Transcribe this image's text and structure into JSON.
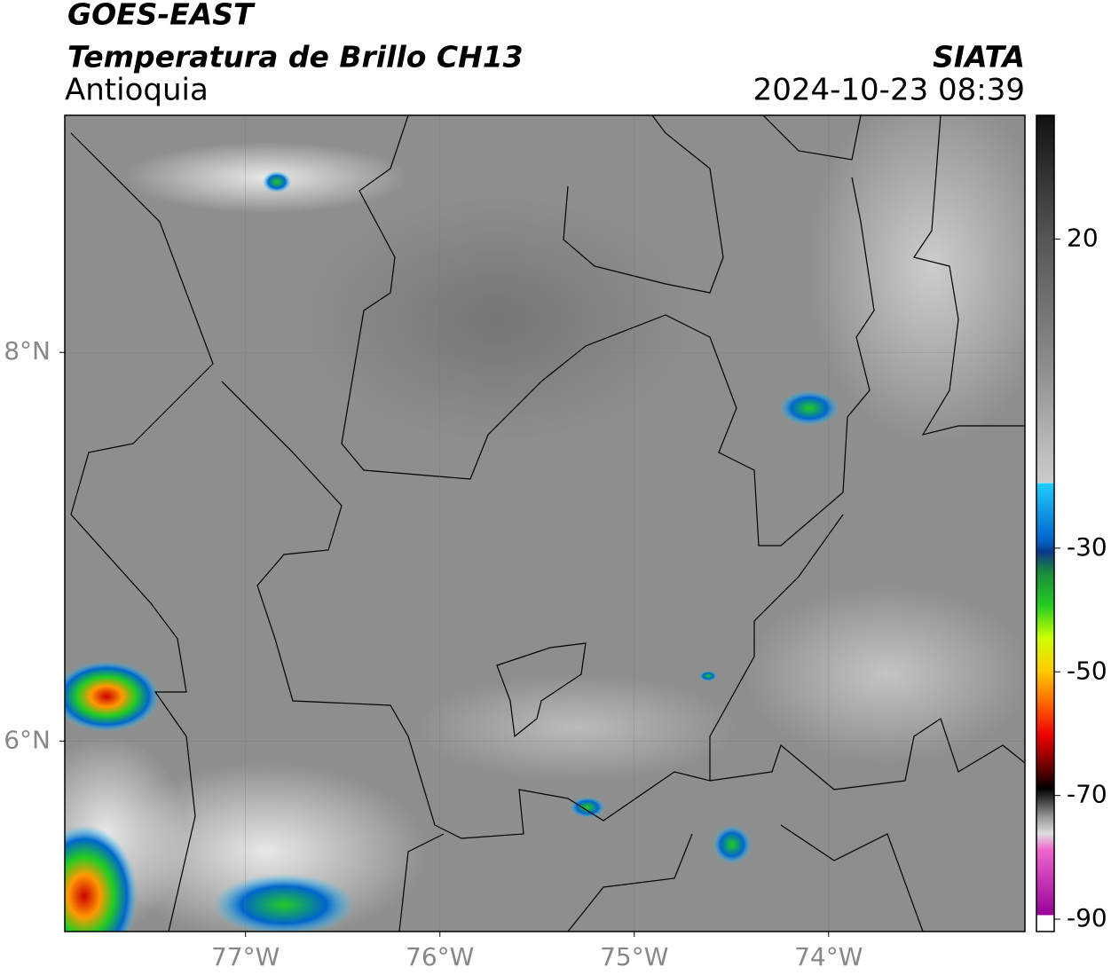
{
  "header": {
    "satellite": "GOES-EAST",
    "product": "Temperatura de Brillo CH13",
    "region": "Antioquia",
    "source": "SIATA",
    "datetime": "2024-10-23 08:39"
  },
  "map": {
    "xlim": [
      -77.93,
      -72.99
    ],
    "ylim": [
      5.02,
      9.22
    ],
    "xticks": [
      {
        "value": -77,
        "label": "77°W"
      },
      {
        "value": -76,
        "label": "76°W"
      },
      {
        "value": -75,
        "label": "75°W"
      },
      {
        "value": -74,
        "label": "74°W"
      }
    ],
    "yticks": [
      {
        "value": 8,
        "label": "8°N"
      },
      {
        "value": 6,
        "label": "6°N"
      }
    ],
    "grid": true
  },
  "colorbar": {
    "lim": [
      -92,
      40
    ],
    "ticks": [
      20,
      -30,
      -50,
      -70,
      -90
    ]
  }
}
